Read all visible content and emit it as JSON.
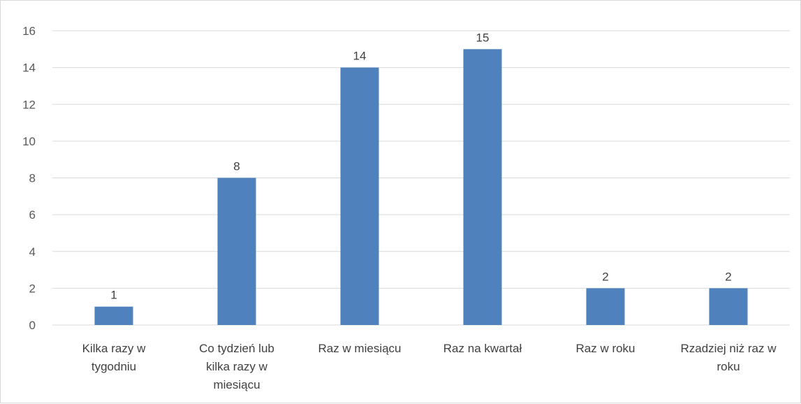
{
  "chart_data": {
    "type": "bar",
    "categories": [
      "Kilka razy w tygodniu",
      "Co tydzień lub kilka razy w miesiącu",
      "Raz w miesiącu",
      "Raz na kwartał",
      "Raz w roku",
      "Rzadziej niż raz w roku"
    ],
    "category_lines": [
      [
        "Kilka razy w",
        "tygodniu"
      ],
      [
        "Co tydzień lub",
        "kilka razy w",
        "miesiącu"
      ],
      [
        "Raz w miesiącu"
      ],
      [
        "Raz na kwartał"
      ],
      [
        "Raz w roku"
      ],
      [
        "Rzadziej niż raz w",
        "roku"
      ]
    ],
    "values": [
      1,
      8,
      14,
      15,
      2,
      2
    ],
    "data_labels": [
      "1",
      "8",
      "14",
      "15",
      "2",
      "2"
    ],
    "ylim": [
      0,
      16
    ],
    "yticks": [
      0,
      2,
      4,
      6,
      8,
      10,
      12,
      14,
      16
    ],
    "grid": true,
    "legend": "none",
    "bar_color": "#4f81bd",
    "grid_color": "#d9d9d9"
  }
}
